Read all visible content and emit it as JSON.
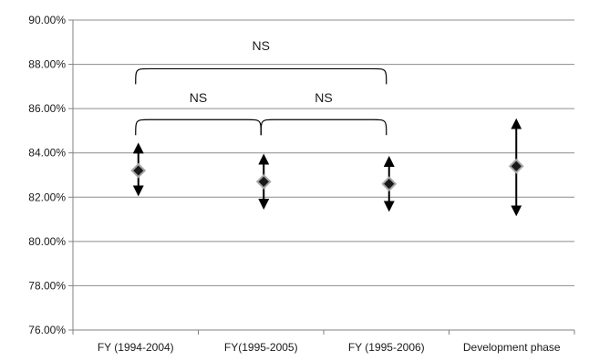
{
  "chart_data": {
    "type": "scatter",
    "title": "",
    "xlabel": "",
    "ylabel": "",
    "ylim": [
      76,
      90
    ],
    "y_ticks": [
      76,
      78,
      80,
      82,
      84,
      86,
      88,
      90
    ],
    "y_tick_labels": [
      "76.00%",
      "78.00%",
      "80.00%",
      "82.00%",
      "84.00%",
      "86.00%",
      "88.00%",
      "90.00%"
    ],
    "grid": true,
    "legend": "none",
    "categories": [
      "FY (1994-2004)",
      "FY(1995-2005)",
      "FY (1995-2006)",
      "Development phase"
    ],
    "series": [
      {
        "values": [
          83.2,
          82.7,
          82.6,
          83.4
        ],
        "lower": [
          82.2,
          81.6,
          81.5,
          81.3
        ],
        "upper": [
          84.3,
          83.8,
          83.7,
          85.4
        ]
      }
    ],
    "annotations": [
      {
        "text": "NS",
        "from_category": 0,
        "to_category": 2,
        "y": 87.8,
        "label_y": 88.85
      },
      {
        "text": "NS",
        "from_category": 0,
        "to_category": 1,
        "y": 85.5,
        "label_y": 86.5
      },
      {
        "text": "NS",
        "from_category": 1,
        "to_category": 2,
        "y": 85.5,
        "label_y": 86.5
      }
    ],
    "colors": {
      "marker_fill": "#1a1a1a",
      "marker_outline": "#a6a6a6",
      "error_bar": "#000000",
      "grid": "#8c8c8c",
      "axis": "#808080"
    }
  }
}
